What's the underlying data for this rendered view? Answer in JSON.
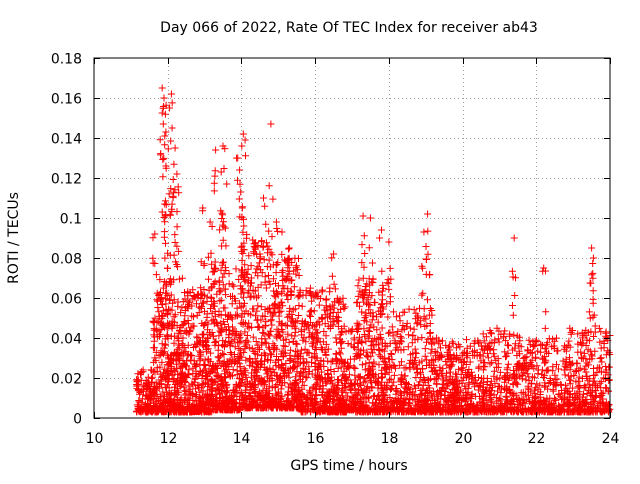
{
  "chart_data": {
    "type": "scatter",
    "title": "Day 066 of 2022, Rate Of TEC Index for receiver ab43",
    "xlabel": "GPS time / hours",
    "ylabel": "ROTI / TECUs",
    "xlim": [
      10,
      24
    ],
    "ylim": [
      0,
      0.18
    ],
    "x_ticks": [
      10,
      12,
      14,
      16,
      18,
      20,
      22,
      24
    ],
    "x_tick_labels": [
      "10",
      "12",
      "14",
      "16",
      "18",
      "20",
      "22",
      "24"
    ],
    "y_ticks": [
      0,
      0.02,
      0.04,
      0.06,
      0.08,
      0.1,
      0.12,
      0.14,
      0.16,
      0.18
    ],
    "y_tick_labels": [
      "0",
      "0.02",
      "0.04",
      "0.06",
      "0.08",
      "0.1",
      "0.12",
      "0.14",
      "0.16",
      "0.18"
    ],
    "grid": true,
    "marker": "+",
    "series_color": "#ff0000",
    "data_span_hours": [
      11.15,
      24.0
    ],
    "notable_points": [
      {
        "x": 11.85,
        "y": 0.165
      },
      {
        "x": 11.9,
        "y": 0.16
      },
      {
        "x": 12.1,
        "y": 0.162
      },
      {
        "x": 12.05,
        "y": 0.155
      },
      {
        "x": 11.88,
        "y": 0.147
      },
      {
        "x": 11.92,
        "y": 0.141
      },
      {
        "x": 12.12,
        "y": 0.145
      },
      {
        "x": 12.2,
        "y": 0.135
      },
      {
        "x": 11.95,
        "y": 0.126
      },
      {
        "x": 12.25,
        "y": 0.122
      },
      {
        "x": 11.65,
        "y": 0.092
      },
      {
        "x": 12.95,
        "y": 0.105
      },
      {
        "x": 13.5,
        "y": 0.136
      },
      {
        "x": 13.45,
        "y": 0.123
      },
      {
        "x": 13.3,
        "y": 0.134
      },
      {
        "x": 13.15,
        "y": 0.098
      },
      {
        "x": 13.6,
        "y": 0.117
      },
      {
        "x": 13.9,
        "y": 0.13
      },
      {
        "x": 13.95,
        "y": 0.124
      },
      {
        "x": 14.05,
        "y": 0.142
      },
      {
        "x": 14.1,
        "y": 0.139
      },
      {
        "x": 13.98,
        "y": 0.113
      },
      {
        "x": 14.8,
        "y": 0.147
      },
      {
        "x": 14.6,
        "y": 0.11
      },
      {
        "x": 14.95,
        "y": 0.098
      },
      {
        "x": 15.1,
        "y": 0.093
      },
      {
        "x": 15.3,
        "y": 0.085
      },
      {
        "x": 16.5,
        "y": 0.082
      },
      {
        "x": 17.3,
        "y": 0.101
      },
      {
        "x": 17.5,
        "y": 0.1
      },
      {
        "x": 17.8,
        "y": 0.094
      },
      {
        "x": 18.0,
        "y": 0.088
      },
      {
        "x": 19.05,
        "y": 0.102
      },
      {
        "x": 18.95,
        "y": 0.093
      },
      {
        "x": 21.4,
        "y": 0.09
      },
      {
        "x": 22.2,
        "y": 0.075
      },
      {
        "x": 23.5,
        "y": 0.085
      },
      {
        "x": 23.55,
        "y": 0.08
      }
    ],
    "envelope": [
      {
        "x0": 11.15,
        "x1": 11.6,
        "y_low": 0.003,
        "y_high": 0.025,
        "density": 120
      },
      {
        "x0": 11.6,
        "x1": 12.4,
        "y_low": 0.003,
        "y_high": 0.07,
        "density": 420
      },
      {
        "x0": 12.4,
        "x1": 13.2,
        "y_low": 0.003,
        "y_high": 0.065,
        "density": 380
      },
      {
        "x0": 13.2,
        "x1": 14.0,
        "y_low": 0.004,
        "y_high": 0.075,
        "density": 380
      },
      {
        "x0": 14.0,
        "x1": 14.8,
        "y_low": 0.005,
        "y_high": 0.09,
        "density": 380
      },
      {
        "x0": 14.8,
        "x1": 15.6,
        "y_low": 0.005,
        "y_high": 0.08,
        "density": 360
      },
      {
        "x0": 15.6,
        "x1": 16.4,
        "y_low": 0.003,
        "y_high": 0.065,
        "density": 320
      },
      {
        "x0": 16.4,
        "x1": 16.85,
        "y_low": 0.003,
        "y_high": 0.06,
        "density": 200
      },
      {
        "x0": 16.85,
        "x1": 17.1,
        "y_low": 0.004,
        "y_high": 0.045,
        "density": 70
      },
      {
        "x0": 17.1,
        "x1": 18.0,
        "y_low": 0.003,
        "y_high": 0.07,
        "density": 360
      },
      {
        "x0": 18.0,
        "x1": 19.2,
        "y_low": 0.003,
        "y_high": 0.055,
        "density": 380
      },
      {
        "x0": 19.2,
        "x1": 20.5,
        "y_low": 0.003,
        "y_high": 0.04,
        "density": 380
      },
      {
        "x0": 20.5,
        "x1": 21.6,
        "y_low": 0.003,
        "y_high": 0.045,
        "density": 300
      },
      {
        "x0": 21.6,
        "x1": 22.8,
        "y_low": 0.003,
        "y_high": 0.04,
        "density": 300
      },
      {
        "x0": 22.8,
        "x1": 24.0,
        "y_low": 0.003,
        "y_high": 0.045,
        "density": 320
      }
    ]
  }
}
